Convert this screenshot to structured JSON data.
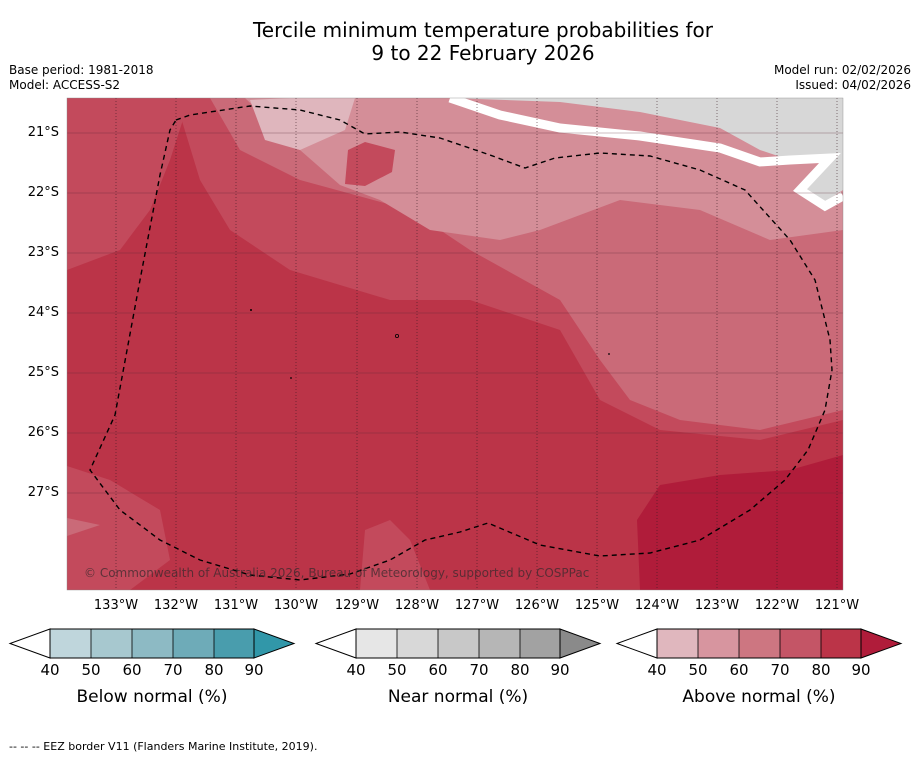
{
  "title_line1": "Tercile minimum temperature probabilities for",
  "title_line2": "9 to 22 February 2026",
  "meta_left": [
    "Base period: 1981-2018",
    "Model: ACCESS-S2"
  ],
  "meta_right": [
    "Model run: 02/02/2026",
    "Issued: 04/02/2026"
  ],
  "map": {
    "lat_labels": [
      "21°S",
      "22°S",
      "23°S",
      "24°S",
      "25°S",
      "26°S",
      "27°S"
    ],
    "lon_labels": [
      "133°W",
      "132°W",
      "131°W",
      "130°W",
      "129°W",
      "128°W",
      "127°W",
      "126°W",
      "125°W",
      "124°W",
      "123°W",
      "122°W",
      "121°W"
    ],
    "copyright": "© Commonwealth of Australia 2026, Bureau of Meteorology, supported by COSPPac",
    "colors": {
      "above_40_50": "#dfb6bd",
      "above_50_60": "#d48e98",
      "above_60_70": "#ca6a78",
      "above_70_80": "#c34a5c",
      "above_80_90": "#bb3448",
      "above_90": "#b01c3a",
      "near_normal_area": "#d7d7d7"
    }
  },
  "colorbars": [
    {
      "label": "Below normal (%)",
      "ticks": [
        "40",
        "50",
        "60",
        "70",
        "80",
        "90"
      ],
      "colors": [
        "#bfd6dc",
        "#a7c8cf",
        "#8dbac4",
        "#6eabb8",
        "#499dad",
        "#3197a9"
      ]
    },
    {
      "label": "Near normal (%)",
      "ticks": [
        "40",
        "50",
        "60",
        "70",
        "80",
        "90"
      ],
      "colors": [
        "#e6e6e6",
        "#d8d8d8",
        "#c8c8c8",
        "#b6b6b6",
        "#a2a2a2",
        "#8a8a8a"
      ]
    },
    {
      "label": "Above normal (%)",
      "ticks": [
        "40",
        "50",
        "60",
        "70",
        "80",
        "90"
      ],
      "colors": [
        "#e0b7be",
        "#d7959f",
        "#cd7681",
        "#c45566",
        "#bb3448",
        "#b01c3a"
      ]
    }
  ],
  "footnote": "--  --  -- EEZ border V11 (Flanders Marine Institute, 2019)."
}
